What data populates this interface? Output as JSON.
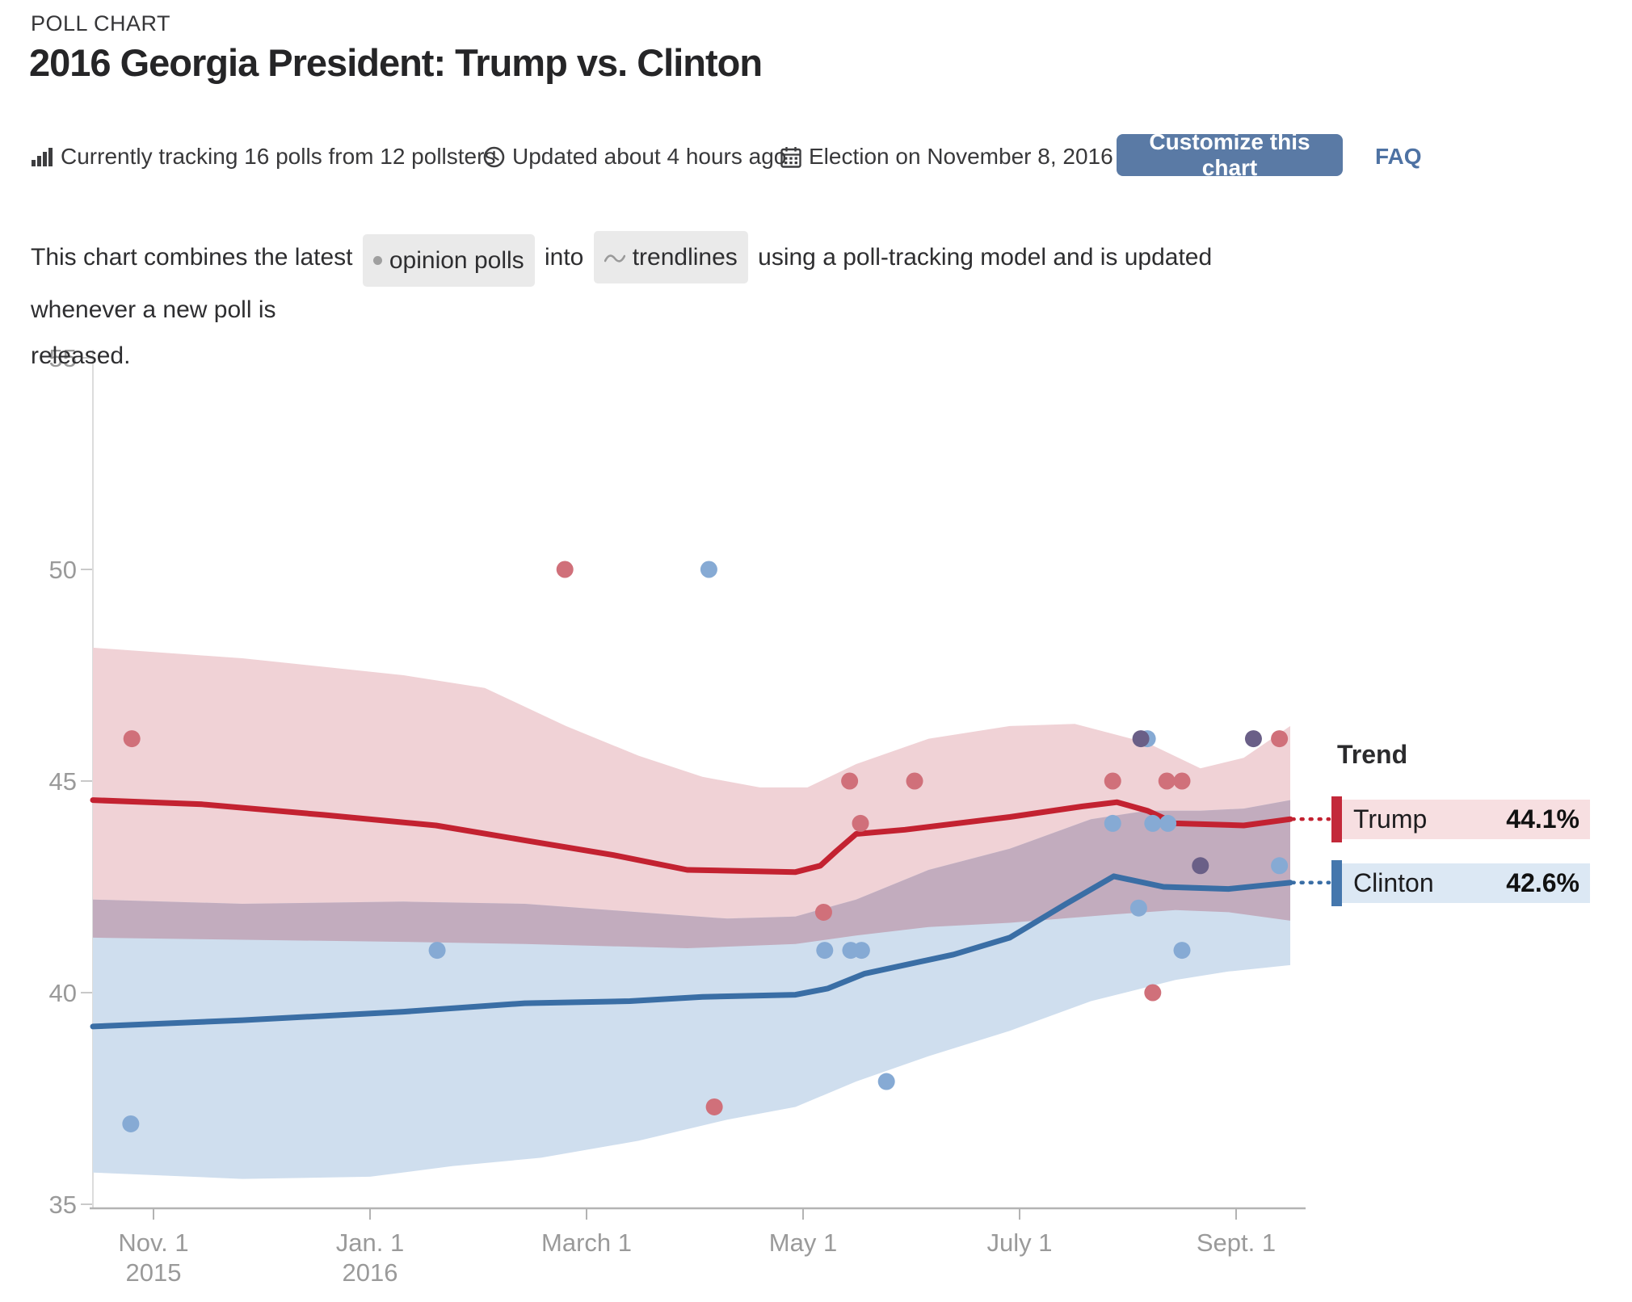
{
  "header": {
    "kicker": "POLL CHART",
    "title": "2016 Georgia President: Trump vs. Clinton"
  },
  "meta": {
    "items": [
      {
        "icon": "bar-chart-icon",
        "text": "Currently tracking 16 polls from 12 pollsters"
      },
      {
        "icon": "clock-icon",
        "text": "Updated about 4 hours ago"
      },
      {
        "icon": "calendar-icon",
        "text": "Election on November 8, 2016"
      }
    ],
    "customize_label": "Customize this chart",
    "faq_label": "FAQ"
  },
  "description": {
    "prefix": "This chart combines the latest",
    "badge1": "opinion polls",
    "middle": "into",
    "badge2": "trendlines",
    "suffix_line1": "using a poll-tracking model and is updated whenever a new poll is",
    "suffix_line2": "released."
  },
  "legend": {
    "heading": "Trend",
    "series": [
      {
        "name": "Trump",
        "value": "44.1%",
        "color": "#c3293a",
        "bg": "#f7dfe1"
      },
      {
        "name": "Clinton",
        "value": "42.6%",
        "color": "#4577ad",
        "bg": "#dce8f4"
      }
    ]
  },
  "chart_data": {
    "type": "line",
    "title": "2016 Georgia President: Trump vs. Clinton",
    "x_unit": "months since Nov 1, 2015",
    "x_ticks": [
      {
        "label": "Nov. 1",
        "year": "2015",
        "m": 0
      },
      {
        "label": "Jan. 1",
        "year": "2016",
        "m": 2
      },
      {
        "label": "March 1",
        "year": "",
        "m": 4
      },
      {
        "label": "May 1",
        "year": "",
        "m": 6
      },
      {
        "label": "July 1",
        "year": "",
        "m": 8
      },
      {
        "label": "Sept. 1",
        "year": "",
        "m": 10
      }
    ],
    "y_ticks": [
      35,
      40,
      45,
      50,
      55
    ],
    "x_range": [
      -0.56,
      10.52
    ],
    "y_range": [
      34.2,
      55.2
    ],
    "grid": false,
    "legend_position": "right",
    "series": [
      {
        "name": "Trump",
        "final_value": 44.1,
        "line_color": "#c32231",
        "dot_color": "#d0707a",
        "band_color": "#f0d2d6",
        "trend": [
          [
            -0.56,
            44.55
          ],
          [
            0.45,
            44.45
          ],
          [
            1.57,
            44.2
          ],
          [
            2.61,
            43.95
          ],
          [
            3.43,
            43.6
          ],
          [
            4.25,
            43.25
          ],
          [
            4.93,
            42.9
          ],
          [
            5.93,
            42.85
          ],
          [
            6.16,
            43.0
          ],
          [
            6.31,
            43.35
          ],
          [
            6.49,
            43.75
          ],
          [
            6.94,
            43.85
          ],
          [
            7.91,
            44.15
          ],
          [
            8.58,
            44.4
          ],
          [
            8.9,
            44.5
          ],
          [
            9.18,
            44.3
          ],
          [
            9.44,
            44.0
          ],
          [
            10.07,
            43.95
          ],
          [
            10.5,
            44.1
          ]
        ],
        "band_upper": [
          [
            -0.56,
            48.15
          ],
          [
            0.82,
            47.9
          ],
          [
            2.31,
            47.5
          ],
          [
            3.06,
            47.2
          ],
          [
            3.81,
            46.3
          ],
          [
            4.48,
            45.6
          ],
          [
            5.07,
            45.1
          ],
          [
            5.6,
            44.85
          ],
          [
            6.04,
            44.85
          ],
          [
            6.49,
            45.4
          ],
          [
            7.16,
            46.0
          ],
          [
            7.91,
            46.3
          ],
          [
            8.51,
            46.35
          ],
          [
            9.18,
            45.9
          ],
          [
            9.67,
            45.3
          ],
          [
            10.07,
            45.55
          ],
          [
            10.5,
            46.3
          ]
        ],
        "band_lower": [
          [
            -0.56,
            41.3
          ],
          [
            0.82,
            41.25
          ],
          [
            2.31,
            41.2
          ],
          [
            3.43,
            41.15
          ],
          [
            4.93,
            41.05
          ],
          [
            5.93,
            41.15
          ],
          [
            6.49,
            41.35
          ],
          [
            7.16,
            41.55
          ],
          [
            7.91,
            41.65
          ],
          [
            8.87,
            41.85
          ],
          [
            9.44,
            41.95
          ],
          [
            9.93,
            41.9
          ],
          [
            10.5,
            41.7
          ]
        ],
        "points": [
          [
            -0.2,
            46
          ],
          [
            3.8,
            50
          ],
          [
            5.18,
            37.3
          ],
          [
            6.19,
            41.9
          ],
          [
            6.43,
            45
          ],
          [
            6.53,
            44
          ],
          [
            7.03,
            45
          ],
          [
            8.86,
            45
          ],
          [
            9.23,
            40
          ],
          [
            9.36,
            45
          ],
          [
            9.5,
            45
          ],
          [
            10.4,
            46
          ]
        ]
      },
      {
        "name": "Clinton",
        "final_value": 42.6,
        "line_color": "#3a6ea5",
        "dot_color": "#86aad4",
        "band_color": "#cfdeee",
        "trend": [
          [
            -0.56,
            39.2
          ],
          [
            0.82,
            39.35
          ],
          [
            2.31,
            39.55
          ],
          [
            3.43,
            39.75
          ],
          [
            4.4,
            39.8
          ],
          [
            5.07,
            39.9
          ],
          [
            5.93,
            39.95
          ],
          [
            6.23,
            40.1
          ],
          [
            6.57,
            40.45
          ],
          [
            7.39,
            40.9
          ],
          [
            7.91,
            41.3
          ],
          [
            8.43,
            42.1
          ],
          [
            8.87,
            42.75
          ],
          [
            9.33,
            42.5
          ],
          [
            9.93,
            42.45
          ],
          [
            10.5,
            42.6
          ]
        ],
        "band_upper": [
          [
            -0.56,
            42.2
          ],
          [
            0.82,
            42.1
          ],
          [
            2.31,
            42.15
          ],
          [
            3.43,
            42.1
          ],
          [
            4.48,
            41.9
          ],
          [
            5.3,
            41.75
          ],
          [
            5.93,
            41.8
          ],
          [
            6.49,
            42.2
          ],
          [
            7.16,
            42.9
          ],
          [
            7.91,
            43.4
          ],
          [
            8.66,
            44.1
          ],
          [
            9.18,
            44.3
          ],
          [
            9.67,
            44.3
          ],
          [
            10.07,
            44.35
          ],
          [
            10.5,
            44.55
          ]
        ],
        "band_lower": [
          [
            -0.56,
            35.75
          ],
          [
            0.82,
            35.6
          ],
          [
            2.0,
            35.65
          ],
          [
            2.76,
            35.9
          ],
          [
            3.58,
            36.1
          ],
          [
            4.48,
            36.5
          ],
          [
            5.3,
            37.0
          ],
          [
            5.93,
            37.3
          ],
          [
            6.49,
            37.9
          ],
          [
            7.16,
            38.5
          ],
          [
            7.91,
            39.1
          ],
          [
            8.66,
            39.8
          ],
          [
            9.44,
            40.3
          ],
          [
            9.93,
            40.5
          ],
          [
            10.5,
            40.65
          ]
        ],
        "points": [
          [
            -0.21,
            36.9
          ],
          [
            2.62,
            41
          ],
          [
            5.13,
            50
          ],
          [
            6.2,
            41
          ],
          [
            6.44,
            41
          ],
          [
            6.54,
            41
          ],
          [
            6.77,
            37.9
          ],
          [
            8.86,
            44
          ],
          [
            9.1,
            42
          ],
          [
            9.18,
            46
          ],
          [
            9.23,
            44
          ],
          [
            9.37,
            44
          ],
          [
            9.5,
            41
          ],
          [
            10.4,
            43
          ]
        ]
      }
    ],
    "overlap_band_color": "#c2acbe",
    "overlap_dot_color": "#6a5f87",
    "overlap_points": [
      [
        9.12,
        46
      ],
      [
        9.67,
        43
      ],
      [
        10.16,
        46
      ]
    ]
  }
}
